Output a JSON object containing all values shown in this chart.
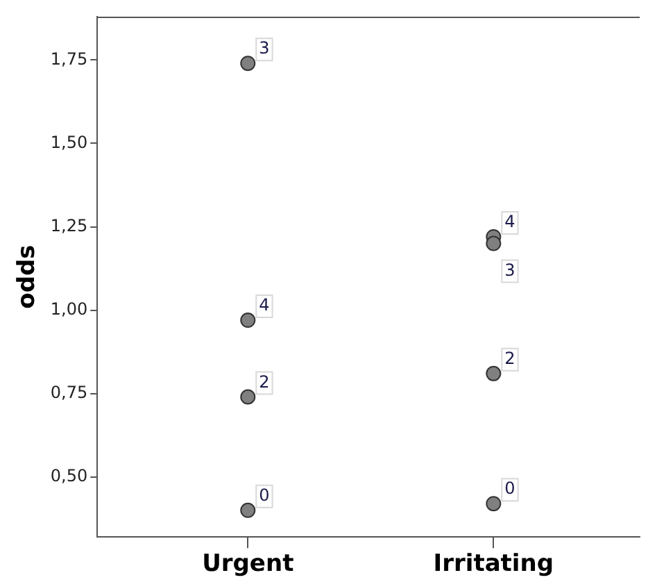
{
  "chart_data": {
    "type": "scatter",
    "ylabel": "odds",
    "categories": [
      "Urgent",
      "Irritating"
    ],
    "series": [
      {
        "color": "#808080",
        "x": [
          "Urgent",
          "Urgent",
          "Urgent",
          "Urgent",
          "Irritating",
          "Irritating",
          "Irritating",
          "Irritating"
        ],
        "values": [
          1.74,
          0.97,
          0.74,
          0.4,
          1.22,
          1.2,
          0.81,
          0.42
        ]
      }
    ],
    "ylim": [
      0.32,
      1.88
    ],
    "yticks": [
      {
        "value": 0.5,
        "label": "0,50"
      },
      {
        "value": 0.75,
        "label": "0,75"
      },
      {
        "value": 1,
        "label": "1,00"
      },
      {
        "value": 1.25,
        "label": "1,25"
      },
      {
        "value": 1.5,
        "label": "1,50"
      },
      {
        "value": 1.75,
        "label": "1,75"
      }
    ],
    "annotations": [
      {
        "text": "3",
        "x": "Urgent",
        "y": 1.74
      },
      {
        "text": "4",
        "x": "Urgent",
        "y": 0.97
      },
      {
        "text": "2",
        "x": "Urgent",
        "y": 0.74
      },
      {
        "text": "0",
        "x": "Urgent",
        "y": 0.4
      },
      {
        "text": "4",
        "x": "Irritating",
        "y": 1.22
      },
      {
        "text": "3",
        "x": "Irritating",
        "y": 1.2
      },
      {
        "text": "2",
        "x": "Irritating",
        "y": 0.81
      },
      {
        "text": "0",
        "x": "Irritating",
        "y": 0.42
      }
    ],
    "grid": false,
    "legend": false,
    "marker": "circle"
  }
}
